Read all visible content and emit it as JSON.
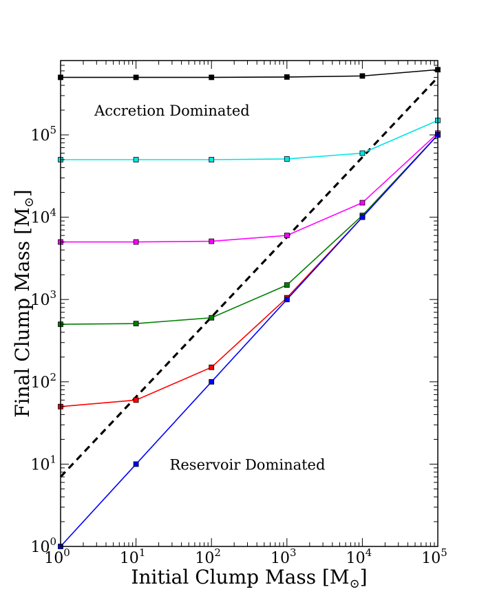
{
  "chart_data": {
    "type": "line",
    "title": "",
    "xlabel": "Initial Clump Mass [M",
    "ylabel": "Final Clump Mass [M",
    "unit_symbol": "⊙",
    "xscale": "log",
    "yscale": "log",
    "xlim": [
      1,
      100000
    ],
    "ylim": [
      1,
      800000
    ],
    "grid": false,
    "x_tick_labels": [
      "10",
      "10",
      "10",
      "10",
      "10",
      "10"
    ],
    "x_tick_exponents": [
      "0",
      "1",
      "2",
      "3",
      "4",
      "5"
    ],
    "x_tick_values": [
      1,
      10,
      100,
      1000,
      10000,
      100000
    ],
    "y_tick_labels": [
      "10",
      "10",
      "10",
      "10",
      "10",
      "10"
    ],
    "y_tick_exponents": [
      "0",
      "1",
      "2",
      "3",
      "4",
      "5"
    ],
    "y_tick_values": [
      1,
      10,
      100,
      1000,
      10000,
      100000
    ],
    "annotations": [
      {
        "text": "Accretion Dominated",
        "x": 30,
        "y": 200000
      },
      {
        "text": "Reservoir Dominated",
        "x": 300,
        "y": 10
      }
    ],
    "x": [
      1,
      10,
      100,
      1000,
      10000,
      100000
    ],
    "series": [
      {
        "color": "#000000",
        "marker": "square",
        "values": [
          500000,
          500000,
          500000,
          505000,
          520000,
          620000
        ]
      },
      {
        "color": "#00e5e5",
        "marker": "square",
        "values": [
          50000,
          50000,
          50000,
          51000,
          60000,
          150000
        ]
      },
      {
        "color": "#ff00ff",
        "marker": "square",
        "values": [
          5000,
          5000,
          5100,
          6000,
          15000,
          105000
        ]
      },
      {
        "color": "#007f00",
        "marker": "square",
        "values": [
          500,
          510,
          600,
          1500,
          10500,
          100000
        ]
      },
      {
        "color": "#ff0000",
        "marker": "square",
        "values": [
          50,
          60,
          150,
          1050,
          10000,
          100000
        ]
      },
      {
        "color": "#0000ff",
        "marker": "square",
        "values": [
          1,
          10,
          100,
          1000,
          10000,
          100000
        ]
      }
    ],
    "reference_line": {
      "color": "#000000",
      "style": "dashed",
      "x": [
        1,
        100000
      ],
      "y": [
        7,
        500000
      ]
    }
  }
}
